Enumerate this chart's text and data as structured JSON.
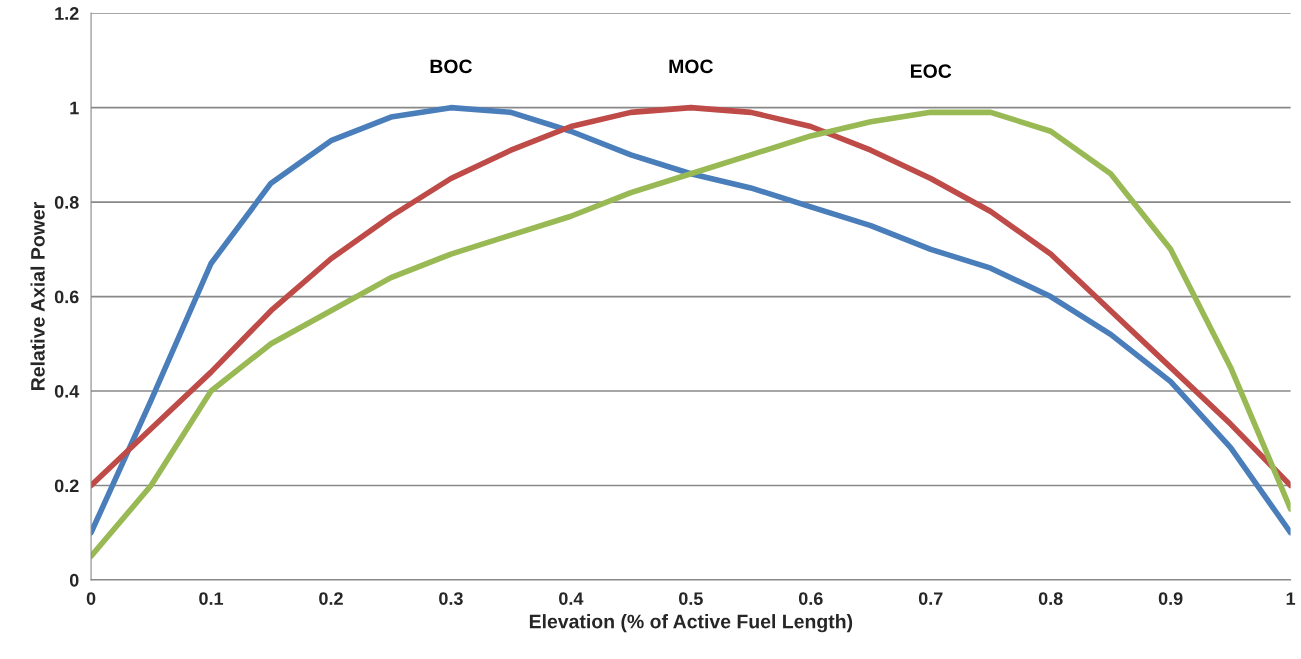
{
  "chart_data": {
    "type": "line",
    "xlabel": "Elevation (% of Active Fuel Length)",
    "ylabel": "Relative Axial Power",
    "x": [
      0,
      0.05,
      0.1,
      0.15,
      0.2,
      0.25,
      0.3,
      0.35,
      0.4,
      0.45,
      0.5,
      0.55,
      0.6,
      0.65,
      0.7,
      0.75,
      0.8,
      0.85,
      0.9,
      0.95,
      1.0
    ],
    "series": [
      {
        "name": "BOC",
        "color": "#4a7ebb",
        "values": [
          0.1,
          0.38,
          0.67,
          0.84,
          0.93,
          0.98,
          1.0,
          0.99,
          0.95,
          0.9,
          0.86,
          0.83,
          0.79,
          0.75,
          0.7,
          0.66,
          0.6,
          0.52,
          0.42,
          0.28,
          0.1
        ]
      },
      {
        "name": "MOC",
        "color": "#be4b48",
        "values": [
          0.2,
          0.32,
          0.44,
          0.57,
          0.68,
          0.77,
          0.85,
          0.91,
          0.96,
          0.99,
          1.0,
          0.99,
          0.96,
          0.91,
          0.85,
          0.78,
          0.69,
          0.57,
          0.45,
          0.33,
          0.2
        ]
      },
      {
        "name": "EOC",
        "color": "#98b954",
        "values": [
          0.05,
          0.2,
          0.4,
          0.5,
          0.57,
          0.64,
          0.69,
          0.73,
          0.77,
          0.82,
          0.86,
          0.9,
          0.94,
          0.97,
          0.99,
          0.99,
          0.95,
          0.86,
          0.7,
          0.45,
          0.15
        ]
      }
    ],
    "xlim": [
      0,
      1
    ],
    "xticks": [
      0,
      0.1,
      0.2,
      0.3,
      0.4,
      0.5,
      0.6,
      0.7,
      0.8,
      0.9,
      1
    ],
    "ylim": [
      0,
      1.2
    ],
    "yticks": [
      0,
      0.2,
      0.4,
      0.6,
      0.8,
      1,
      1.2
    ],
    "grid": "y",
    "legend": false,
    "marker": "none",
    "line_style": "solid"
  }
}
